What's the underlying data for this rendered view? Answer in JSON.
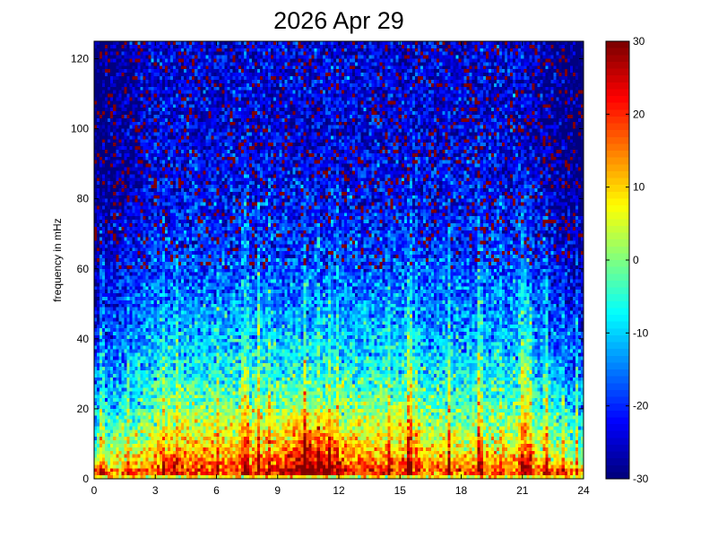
{
  "chart_data": {
    "type": "heatmap",
    "title": "2026 Apr 29",
    "xlabel": "",
    "ylabel": "frequency in mHz",
    "xlim": [
      0,
      24
    ],
    "ylim": [
      0,
      125
    ],
    "x_ticks": [
      0,
      3,
      6,
      9,
      12,
      15,
      18,
      21,
      24
    ],
    "y_ticks": [
      0,
      20,
      40,
      60,
      80,
      100,
      120
    ],
    "colorbar": {
      "colormap": "jet",
      "range": [
        -30,
        30
      ],
      "ticks": [
        30,
        20,
        10,
        0,
        -10,
        -20,
        -30
      ]
    },
    "grid": {
      "time_bins": 180,
      "freq_bins": 125,
      "time_step_hours": 0.1333,
      "freq_step_mhz": 1
    },
    "intensity_profile": {
      "description_keys": [
        "freq_mhz",
        "typical_db"
      ],
      "points": [
        [
          0,
          10
        ],
        [
          2,
          18
        ],
        [
          5,
          12
        ],
        [
          10,
          6
        ],
        [
          20,
          -2
        ],
        [
          30,
          -8
        ],
        [
          40,
          -12
        ],
        [
          50,
          -15
        ],
        [
          60,
          -18
        ],
        [
          80,
          -22
        ],
        [
          100,
          -24
        ],
        [
          125,
          -24
        ]
      ],
      "peak_activity_hours": [
        8.5,
        12.5
      ],
      "peak_activity_db": 26
    },
    "colors": {
      "low": "#00008f",
      "mid": "#80ff80",
      "high": "#800000"
    }
  }
}
